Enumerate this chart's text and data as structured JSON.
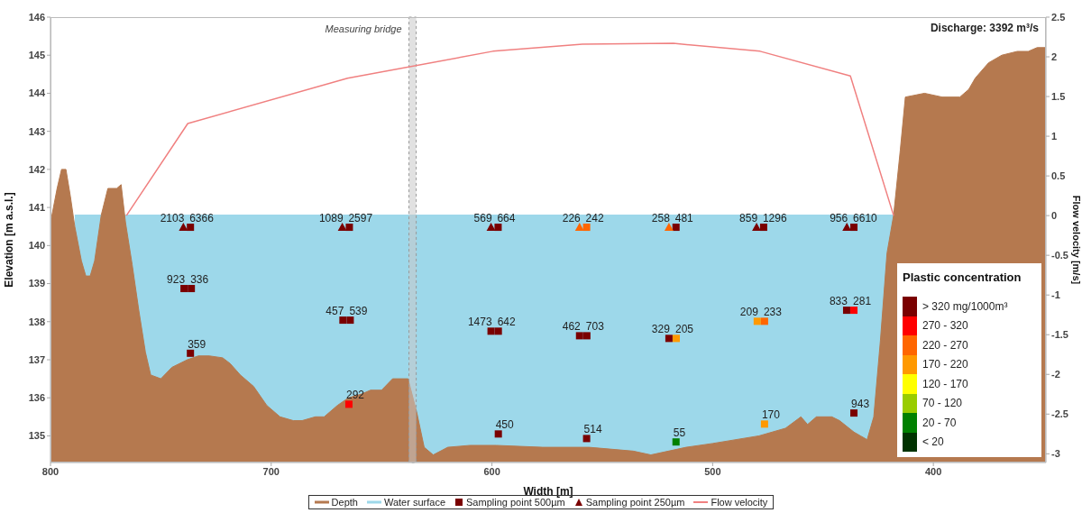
{
  "chart_data": [
    {
      "type": "area",
      "xlabel": "Width [m]",
      "ylabel": "Elevation [m a.s.l.]",
      "y2label": "Flow velocity [m/s]",
      "xlim": [
        800,
        349
      ],
      "xticks": [
        800,
        700,
        600,
        500,
        400
      ],
      "ylim": [
        134.3,
        146
      ],
      "yticks": [
        135,
        136,
        137,
        138,
        139,
        140,
        141,
        142,
        143,
        144,
        145,
        146
      ],
      "y2lim": [
        -3.11,
        2.5
      ],
      "y2ticks": [
        -3,
        -2.5,
        -2,
        -1.5,
        -1,
        -0.5,
        0,
        0.5,
        1,
        1.5,
        2,
        2.5
      ],
      "legend": "bottom",
      "marker": "none",
      "annotations": [
        "Discharge: 3392 m³/s",
        {
          "text": "2103",
          "x": 739.8,
          "y": 140.48
        },
        {
          "text": "6366",
          "x": 736.6,
          "y": 140.48
        },
        {
          "text": "1089",
          "x": 667.8,
          "y": 140.48
        },
        {
          "text": "2597",
          "x": 664.6,
          "y": 140.48
        },
        {
          "text": "569",
          "x": 600.4,
          "y": 140.48
        },
        {
          "text": "664",
          "x": 597.2,
          "y": 140.48
        },
        {
          "text": "226",
          "x": 560.3,
          "y": 140.48
        },
        {
          "text": "242",
          "x": 557.1,
          "y": 140.48
        },
        {
          "text": "258",
          "x": 519.8,
          "y": 140.48
        },
        {
          "text": "481",
          "x": 516.6,
          "y": 140.48
        },
        {
          "text": "859",
          "x": 480.1,
          "y": 140.48
        },
        {
          "text": "1296",
          "x": 476.9,
          "y": 140.48
        },
        {
          "text": "956",
          "x": 439.2,
          "y": 140.48
        },
        {
          "text": "6610",
          "x": 436,
          "y": 140.48
        },
        {
          "text": "923",
          "x": 739.5,
          "y": 138.87
        },
        {
          "text": "336",
          "x": 736.2,
          "y": 138.87
        },
        {
          "text": "457",
          "x": 667.5,
          "y": 138.04
        },
        {
          "text": "539",
          "x": 664.2,
          "y": 138.04
        },
        {
          "text": "1473",
          "x": 600.4,
          "y": 137.75
        },
        {
          "text": "642",
          "x": 597.1,
          "y": 137.75
        },
        {
          "text": "462",
          "x": 560.3,
          "y": 137.63
        },
        {
          "text": "703",
          "x": 557,
          "y": 137.63
        },
        {
          "text": "329",
          "x": 519.8,
          "y": 137.56
        },
        {
          "text": "205",
          "x": 516.5,
          "y": 137.56
        },
        {
          "text": "209",
          "x": 479.8,
          "y": 138.01
        },
        {
          "text": "233",
          "x": 476.5,
          "y": 138.01
        },
        {
          "text": "833",
          "x": 439.3,
          "y": 138.3
        },
        {
          "text": "281",
          "x": 436,
          "y": 138.3
        },
        {
          "text": "359",
          "x": 736.6,
          "y": 137.17
        },
        {
          "text": "292",
          "x": 664.8,
          "y": 135.83
        },
        {
          "text": "450",
          "x": 597.1,
          "y": 135.05
        },
        {
          "text": "514",
          "x": 557.1,
          "y": 134.93
        },
        {
          "text": "55",
          "x": 516.6,
          "y": 134.84
        },
        {
          "text": "170",
          "x": 476.5,
          "y": 135.31
        },
        {
          "text": "943",
          "x": 436,
          "y": 135.6
        }
      ],
      "bands": [
        {
          "axis": "x",
          "from": 637.6,
          "to": 634.3,
          "label": "Measuring bridge",
          "color": "#c8c8c8"
        }
      ],
      "series": [
        {
          "name": "Depth",
          "color": "#b5794f",
          "x": [
            800,
            797,
            795,
            793,
            791,
            789,
            786,
            784,
            782,
            780,
            777,
            774,
            770,
            768,
            766,
            763,
            760,
            757,
            754.6,
            750,
            745,
            738,
            733,
            728,
            722,
            718.6,
            714,
            708,
            702,
            696,
            690,
            686,
            680,
            676,
            670,
            665,
            659,
            655,
            650,
            645,
            638,
            634,
            630.7,
            626.6,
            620,
            610,
            598,
            577,
            556,
            536,
            528,
            512,
            500,
            479,
            467,
            460,
            457,
            453,
            446,
            442.5,
            436,
            433,
            430,
            427,
            424,
            421,
            418,
            415,
            412.7,
            404,
            396,
            388,
            384,
            381,
            375,
            369,
            362,
            357,
            353,
            349
          ],
          "values": [
            140.6,
            141.5,
            142,
            142,
            141.3,
            140.5,
            139.6,
            139.2,
            139.2,
            139.6,
            140.8,
            141.5,
            141.5,
            141.6,
            140.6,
            139.5,
            138.3,
            137.2,
            136.6,
            136.5,
            136.8,
            137,
            137.1,
            137.1,
            137.05,
            136.9,
            136.6,
            136.3,
            135.8,
            135.5,
            135.4,
            135.4,
            135.5,
            135.5,
            135.8,
            136,
            136.1,
            136.2,
            136.2,
            136.5,
            136.5,
            135.6,
            134.7,
            134.5,
            134.7,
            134.75,
            134.75,
            134.7,
            134.7,
            134.6,
            134.5,
            134.7,
            134.8,
            135,
            135.2,
            135.5,
            135.3,
            135.5,
            135.5,
            135.4,
            135.1,
            135,
            134.9,
            135.5,
            137.5,
            139.8,
            140.8,
            142.5,
            143.9,
            144,
            143.9,
            143.9,
            144.1,
            144.4,
            144.8,
            145,
            145.1,
            145.1,
            145.2,
            145.2
          ]
        },
        {
          "name": "Water surface",
          "color": "#9dd8ea",
          "x": [
            789,
            418
          ],
          "values": [
            140.8,
            140.8
          ]
        },
        {
          "name": "Sampling point 500µm",
          "type": "scatter",
          "marker": "square",
          "x": [
            736.6,
            664.6,
            597.2,
            557.1,
            516.6,
            476.9,
            436,
            739.5,
            736.2,
            667.5,
            664.2,
            600.4,
            597.1,
            560.3,
            557,
            519.8,
            516.5,
            479.8,
            476.5,
            439.3,
            436,
            736.6,
            664.8,
            597.1,
            557.1,
            516.6,
            476.5,
            436
          ],
          "values": [
            140.48,
            140.48,
            140.48,
            140.48,
            140.48,
            140.48,
            140.48,
            138.87,
            138.87,
            138.04,
            138.04,
            137.75,
            137.75,
            137.63,
            137.63,
            137.56,
            137.56,
            138.01,
            138.01,
            138.3,
            138.3,
            137.17,
            135.83,
            135.05,
            134.93,
            134.84,
            135.31,
            135.6
          ],
          "colors": [
            "#7a0000",
            "#7a0000",
            "#7a0000",
            "#ff6600",
            "#7a0000",
            "#7a0000",
            "#7a0000",
            "#7a0000",
            "#7a0000",
            "#7a0000",
            "#7a0000",
            "#7a0000",
            "#7a0000",
            "#7a0000",
            "#7a0000",
            "#7a0000",
            "#ff9900",
            "#ff9900",
            "#ff6600",
            "#7a0000",
            "#ff0000",
            "#7a0000",
            "#ff0000",
            "#7a0000",
            "#7a0000",
            "#008000",
            "#ff9900",
            "#7a0000"
          ]
        },
        {
          "name": "Sampling point 250µm",
          "type": "scatter",
          "marker": "triangle",
          "x": [
            739.8,
            667.8,
            600.4,
            560.3,
            519.8,
            480.1,
            439.2
          ],
          "values": [
            140.48,
            140.48,
            140.48,
            140.48,
            140.48,
            140.48,
            140.48
          ],
          "colors": [
            "#7a0000",
            "#7a0000",
            "#7a0000",
            "#ff6600",
            "#ff6600",
            "#7a0000",
            "#7a0000"
          ]
        },
        {
          "name": "Flow velocity",
          "type": "line",
          "axis": "y2",
          "color": "#f08080",
          "x": [
            765.6,
            737.8,
            665.4,
            599.6,
            559,
            517.8,
            478.5,
            437.6,
            418
          ],
          "values": [
            0,
            1.16,
            1.73,
            2.07,
            2.16,
            2.17,
            2.07,
            1.76,
            0
          ]
        }
      ]
    },
    {
      "type": "other",
      "title": "Plastic concentration",
      "categories": [
        "> 320 mg/1000m³",
        "270 - 320",
        "220 - 270",
        "170 - 220",
        "120 - 170",
        "70 - 120",
        "20 - 70",
        "< 20"
      ],
      "colors": [
        "#7a0000",
        "#ff0000",
        "#ff6600",
        "#ff9900",
        "#ffff00",
        "#99cc00",
        "#008000",
        "#003300"
      ]
    }
  ]
}
